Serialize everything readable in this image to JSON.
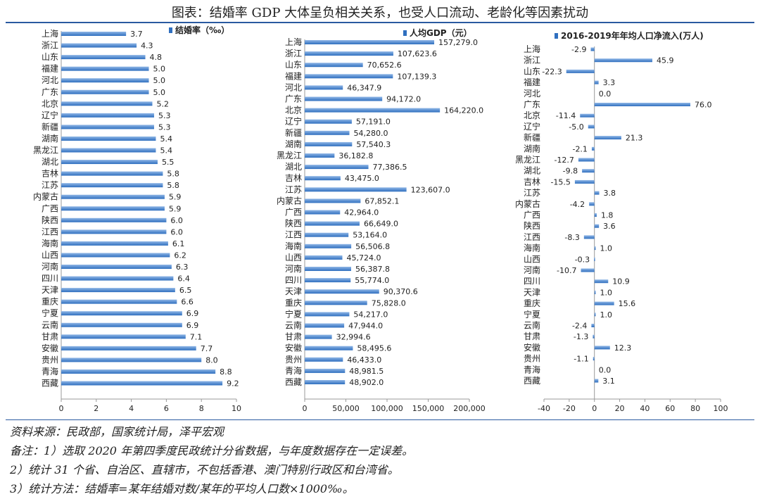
{
  "title": "图表：结婚率 GDP 大体呈负相关关系，也受人口流动、老龄化等因素扰动",
  "notes": {
    "source": "资料来源：民政部，国家统计局，泽平宏观",
    "note1": "备注：1）选取 2020 年第四季度民政统计分省数据，与年度数据存在一定误差。",
    "note2": "2）统计 31 个省、自治区、直辖市，不包括香港、澳门特别行政区和台湾省。",
    "note3": "3）统计方法：结婚率=某年结婚对数/某年的平均人口数×1000‰。"
  },
  "colors": {
    "bar": "#2f6fbf",
    "bar_light": "#8fb6e6",
    "rule": "#2a5aa0"
  },
  "chart_data": [
    {
      "type": "bar",
      "orientation": "horizontal",
      "legend": "结婚率（‰）",
      "legend_position": "top-right",
      "categories": [
        "上海",
        "浙江",
        "山东",
        "福建",
        "河北",
        "广东",
        "北京",
        "辽宁",
        "新疆",
        "湖南",
        "黑龙江",
        "湖北",
        "吉林",
        "江苏",
        "内蒙古",
        "广西",
        "陕西",
        "江西",
        "海南",
        "山西",
        "河南",
        "四川",
        "天津",
        "重庆",
        "宁夏",
        "云南",
        "甘肃",
        "安徽",
        "贵州",
        "青海",
        "西藏"
      ],
      "values": [
        3.7,
        4.3,
        4.8,
        5.0,
        5.0,
        5.0,
        5.2,
        5.3,
        5.3,
        5.4,
        5.4,
        5.5,
        5.8,
        5.8,
        5.9,
        5.9,
        6.0,
        6.0,
        6.1,
        6.2,
        6.3,
        6.4,
        6.5,
        6.6,
        6.9,
        6.9,
        7.1,
        7.7,
        8.0,
        8.8,
        9.2
      ],
      "value_labels": [
        "3.7",
        "4.3",
        "4.8",
        "5.0",
        "5.0",
        "5.0",
        "5.2",
        "5.3",
        "5.3",
        "5.4",
        "5.4",
        "5.5",
        "5.8",
        "5.8",
        "5.9",
        "5.9",
        "6.0",
        "6.0",
        "6.1",
        "6.2",
        "6.3",
        "6.4",
        "6.5",
        "6.6",
        "6.9",
        "6.9",
        "7.1",
        "7.7",
        "8.0",
        "8.8",
        "9.2"
      ],
      "xlim": [
        0,
        10
      ],
      "xticks": [
        0,
        2,
        4,
        6,
        8,
        10
      ],
      "xtick_labels": [
        "0",
        "2",
        "4",
        "6",
        "8",
        "10"
      ]
    },
    {
      "type": "bar",
      "orientation": "horizontal",
      "legend": "人均GDP（元）",
      "legend_position": "top-right",
      "categories": [
        "上海",
        "浙江",
        "山东",
        "福建",
        "河北",
        "广东",
        "北京",
        "辽宁",
        "新疆",
        "湖南",
        "黑龙江",
        "湖北",
        "吉林",
        "江苏",
        "内蒙古",
        "广西",
        "陕西",
        "江西",
        "海南",
        "山西",
        "河南",
        "四川",
        "天津",
        "重庆",
        "宁夏",
        "云南",
        "甘肃",
        "安徽",
        "贵州",
        "青海",
        "西藏"
      ],
      "values": [
        157279.0,
        107623.6,
        70652.6,
        107139.3,
        46347.9,
        94172.0,
        164220.0,
        57191.0,
        54280.0,
        57540.3,
        36182.8,
        77386.5,
        43475.0,
        123607.0,
        67852.1,
        42964.0,
        66649.0,
        53164.0,
        56506.8,
        45724.0,
        56387.8,
        55774.0,
        90370.6,
        75828.0,
        54217.0,
        47944.0,
        32994.6,
        58495.6,
        46433.0,
        48981.5,
        48902.0
      ],
      "value_labels": [
        "157,279.0",
        "107,623.6",
        "70,652.6",
        "107,139.3",
        "46,347.9",
        "94,172.0",
        "164,220.0",
        "57,191.0",
        "54,280.0",
        "57,540.3",
        "36,182.8",
        "77,386.5",
        "43,475.0",
        "123,607.0",
        "67,852.1",
        "42,964.0",
        "66,649.0",
        "53,164.0",
        "56,506.8",
        "45,724.0",
        "56,387.8",
        "55,774.0",
        "90,370.6",
        "75,828.0",
        "54,217.0",
        "47,944.0",
        "32,994.6",
        "58,495.6",
        "46,433.0",
        "48,981.5",
        "48,902.0"
      ],
      "xlim": [
        0,
        200000
      ],
      "xticks": [
        0,
        50000,
        100000,
        150000,
        200000
      ],
      "xtick_labels": [
        "0",
        "50,000",
        "100,000",
        "150,000",
        "200,000"
      ]
    },
    {
      "type": "bar",
      "orientation": "horizontal",
      "legend": "2016-2019年年均人口净流入(万人)",
      "legend_position": "top-right",
      "categories": [
        "上海",
        "浙江",
        "山东",
        "福建",
        "河北",
        "广东",
        "北京",
        "辽宁",
        "新疆",
        "湖南",
        "黑龙江",
        "湖北",
        "吉林",
        "江苏",
        "内蒙古",
        "广西",
        "陕西",
        "江西",
        "海南",
        "山西",
        "河南",
        "四川",
        "天津",
        "重庆",
        "宁夏",
        "云南",
        "甘肃",
        "安徽",
        "贵州",
        "青海",
        "西藏"
      ],
      "values": [
        -2.9,
        45.9,
        -22.3,
        3.3,
        0.0,
        76.0,
        -11.4,
        -5.0,
        21.3,
        -2.1,
        -12.7,
        -9.8,
        -15.5,
        3.8,
        -4.2,
        1.8,
        3.6,
        -8.3,
        1.0,
        -0.3,
        -10.7,
        10.9,
        1.0,
        15.6,
        1.0,
        -2.4,
        -1.3,
        12.3,
        -1.1,
        0.0,
        3.1
      ],
      "value_labels": [
        "-2.9",
        "45.9",
        "-22.3",
        "3.3",
        "0.0",
        "76.0",
        "-11.4",
        "-5.0",
        "21.3",
        "-2.1",
        "-12.7",
        "-9.8",
        "-15.5",
        "3.8",
        "-4.2",
        "1.8",
        "3.6",
        "-8.3",
        "1.0",
        "-0.3",
        "-10.7",
        "10.9",
        "1.0",
        "15.6",
        "1.0",
        "-2.4",
        "-1.3",
        "12.3",
        "-1.1",
        "0.0",
        "3.1"
      ],
      "xlim": [
        -40,
        100
      ],
      "xticks": [
        -40,
        -20,
        0,
        20,
        40,
        60,
        80,
        100
      ],
      "xtick_labels": [
        "-40",
        "-20",
        "0",
        "20",
        "40",
        "60",
        "80",
        "100"
      ]
    }
  ]
}
